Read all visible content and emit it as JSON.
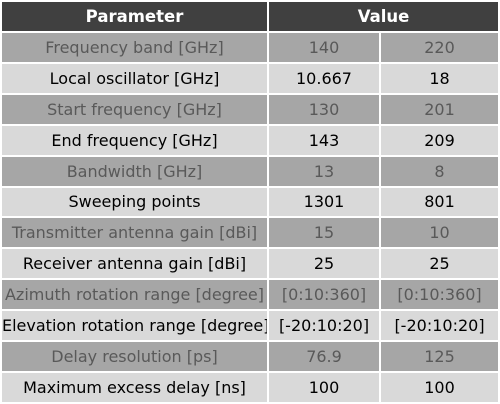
{
  "header": {
    "parameter": "Parameter",
    "value": "Value"
  },
  "rows": [
    {
      "param": "Frequency band [GHz]",
      "v1": "140",
      "v2": "220"
    },
    {
      "param": "Local oscillator [GHz]",
      "v1": "10.667",
      "v2": "18"
    },
    {
      "param": "Start frequency [GHz]",
      "v1": "130",
      "v2": "201"
    },
    {
      "param": "End frequency [GHz]",
      "v1": "143",
      "v2": "209"
    },
    {
      "param": "Bandwidth [GHz]",
      "v1": "13",
      "v2": "8"
    },
    {
      "param": "Sweeping points",
      "v1": "1301",
      "v2": "801"
    },
    {
      "param": "Transmitter antenna gain [dBi]",
      "v1": "15",
      "v2": "10"
    },
    {
      "param": "Receiver antenna gain [dBi]",
      "v1": "25",
      "v2": "25"
    },
    {
      "param": "Azimuth rotation range [degree]",
      "v1": "[0:10:360]",
      "v2": "[0:10:360]"
    },
    {
      "param": "Elevation rotation range [degree]",
      "v1": "[-20:10:20]",
      "v2": "[-20:10:20]"
    },
    {
      "param": "Delay resolution [ps]",
      "v1": "76.9",
      "v2": "125"
    },
    {
      "param": "Maximum excess delay [ns]",
      "v1": "100",
      "v2": "100"
    }
  ],
  "colors": {
    "header_bg": "#404040",
    "header_text": "#ffffff",
    "row_dark_bg": "#a6a6a6",
    "row_dark_text": "#595959",
    "row_light_bg": "#d9d9d9",
    "row_light_text": "#000000"
  }
}
